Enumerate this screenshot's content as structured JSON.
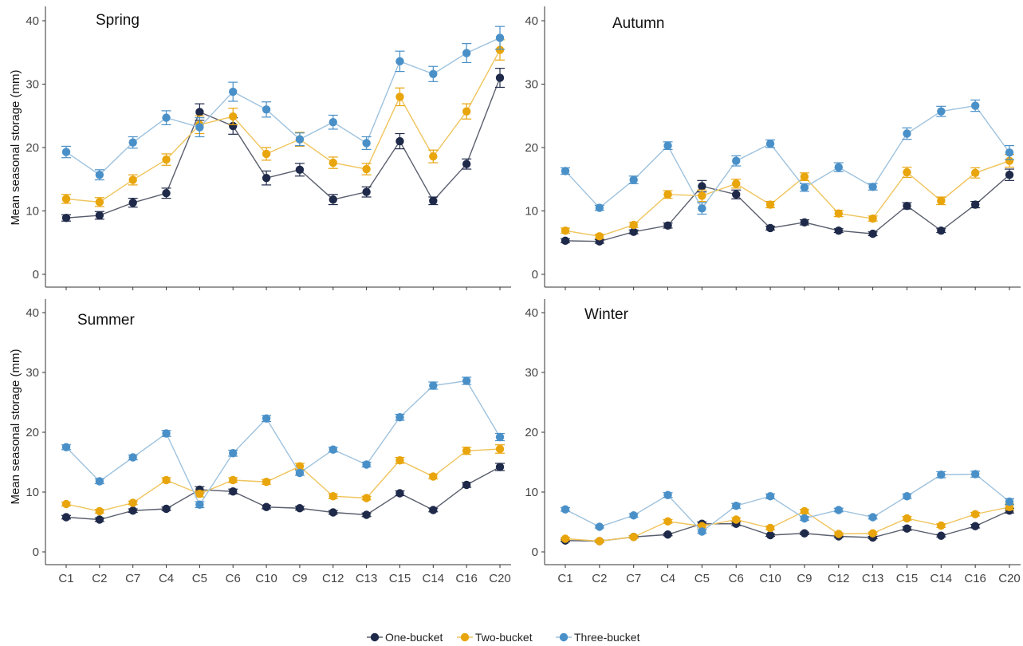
{
  "chart_data": {
    "type": "line",
    "ylabel": "Mean seasonal storage (mm)",
    "ylim": [
      0,
      40
    ],
    "yticks": [
      "0",
      "10",
      "20",
      "30",
      "40"
    ],
    "categories": [
      "C1",
      "C2",
      "C7",
      "C4",
      "C5",
      "C6",
      "C10",
      "C9",
      "C12",
      "C13",
      "C15",
      "C14",
      "C16",
      "C20"
    ],
    "legend": {
      "position": "bottom",
      "entries": [
        "One-bucket",
        "Two-bucket",
        "Three-bucket"
      ],
      "colors": [
        "#1f2a4a",
        "#e8a50c",
        "#4a90c8"
      ]
    },
    "panels": [
      {
        "title": "Spring",
        "series": [
          {
            "name": "One-bucket",
            "values": [
              8.9,
              9.3,
              11.3,
              12.8,
              25.6,
              23.4,
              15.2,
              16.5,
              11.8,
              13.0,
              21.0,
              11.6,
              17.4,
              31.0
            ],
            "errors": [
              0.5,
              0.6,
              0.7,
              0.8,
              1.3,
              1.3,
              1.1,
              1.0,
              0.8,
              0.8,
              1.2,
              0.6,
              0.8,
              1.5
            ]
          },
          {
            "name": "Two-bucket",
            "values": [
              11.9,
              11.4,
              14.9,
              18.1,
              23.6,
              24.9,
              19.0,
              21.3,
              17.6,
              16.6,
              28.0,
              18.6,
              25.7,
              35.4
            ],
            "errors": [
              0.7,
              0.7,
              0.8,
              0.9,
              1.4,
              1.3,
              1.0,
              1.1,
              0.9,
              0.9,
              1.4,
              1.0,
              1.2,
              1.6
            ]
          },
          {
            "name": "Three-bucket",
            "values": [
              19.3,
              15.7,
              20.8,
              24.7,
              23.2,
              28.8,
              26.0,
              21.3,
              24.0,
              20.7,
              33.6,
              31.6,
              34.9,
              37.3
            ],
            "errors": [
              0.9,
              0.8,
              0.9,
              1.1,
              1.5,
              1.5,
              1.2,
              1.0,
              1.1,
              1.0,
              1.6,
              1.2,
              1.5,
              1.8
            ]
          }
        ]
      },
      {
        "title": "Autumn",
        "series": [
          {
            "name": "One-bucket",
            "values": [
              5.3,
              5.2,
              6.7,
              7.7,
              13.9,
              12.6,
              7.3,
              8.2,
              6.9,
              6.4,
              10.8,
              6.9,
              11.0,
              15.7
            ],
            "errors": [
              0.3,
              0.3,
              0.3,
              0.4,
              0.9,
              0.7,
              0.3,
              0.4,
              0.3,
              0.3,
              0.5,
              0.3,
              0.5,
              0.9
            ]
          },
          {
            "name": "Two-bucket",
            "values": [
              6.9,
              6.0,
              7.8,
              12.6,
              12.4,
              14.3,
              11.0,
              15.4,
              9.6,
              8.8,
              16.1,
              11.6,
              16.0,
              17.9
            ],
            "errors": [
              0.4,
              0.3,
              0.4,
              0.6,
              0.9,
              0.7,
              0.5,
              0.6,
              0.5,
              0.4,
              0.8,
              0.6,
              0.8,
              1.0
            ]
          },
          {
            "name": "Three-bucket",
            "values": [
              16.3,
              10.5,
              14.9,
              20.3,
              10.4,
              17.9,
              20.6,
              13.7,
              16.9,
              13.8,
              22.2,
              25.7,
              26.6,
              19.2
            ],
            "errors": [
              0.5,
              0.4,
              0.6,
              0.6,
              0.9,
              0.8,
              0.6,
              0.6,
              0.7,
              0.5,
              0.9,
              0.8,
              0.9,
              1.1
            ]
          }
        ]
      },
      {
        "title": "Summer",
        "series": [
          {
            "name": "One-bucket",
            "values": [
              5.8,
              5.4,
              6.9,
              7.2,
              10.4,
              10.1,
              7.5,
              7.3,
              6.6,
              6.2,
              9.8,
              7.0,
              11.2,
              14.2
            ],
            "errors": [
              0.3,
              0.3,
              0.3,
              0.3,
              0.5,
              0.4,
              0.3,
              0.3,
              0.3,
              0.3,
              0.4,
              0.3,
              0.4,
              0.6
            ]
          },
          {
            "name": "Two-bucket",
            "values": [
              8.0,
              6.8,
              8.2,
              12.0,
              9.7,
              12.0,
              11.7,
              14.3,
              9.3,
              9.0,
              15.3,
              12.6,
              16.9,
              17.2
            ],
            "errors": [
              0.3,
              0.3,
              0.3,
              0.4,
              0.5,
              0.4,
              0.4,
              0.5,
              0.4,
              0.3,
              0.5,
              0.4,
              0.6,
              0.7
            ]
          },
          {
            "name": "Three-bucket",
            "values": [
              17.5,
              11.8,
              15.8,
              19.8,
              7.9,
              16.5,
              22.3,
              13.2,
              17.1,
              14.6,
              22.5,
              27.8,
              28.6,
              19.2
            ],
            "errors": [
              0.4,
              0.4,
              0.4,
              0.5,
              0.5,
              0.5,
              0.5,
              0.4,
              0.4,
              0.4,
              0.5,
              0.6,
              0.6,
              0.6
            ]
          }
        ]
      },
      {
        "title": "Winter",
        "series": [
          {
            "name": "One-bucket",
            "values": [
              1.9,
              1.8,
              2.5,
              2.9,
              4.7,
              4.7,
              2.8,
              3.1,
              2.6,
              2.4,
              3.9,
              2.7,
              4.3,
              6.9
            ],
            "errors": [
              0.2,
              0.2,
              0.2,
              0.2,
              0.3,
              0.3,
              0.2,
              0.2,
              0.2,
              0.2,
              0.3,
              0.2,
              0.3,
              0.4
            ]
          },
          {
            "name": "Two-bucket",
            "values": [
              2.2,
              1.8,
              2.5,
              5.1,
              4.3,
              5.4,
              4.0,
              6.8,
              3.0,
              3.1,
              5.6,
              4.4,
              6.3,
              7.5
            ],
            "errors": [
              0.2,
              0.2,
              0.2,
              0.3,
              0.3,
              0.3,
              0.3,
              0.3,
              0.2,
              0.2,
              0.3,
              0.3,
              0.3,
              0.5
            ]
          },
          {
            "name": "Three-bucket",
            "values": [
              7.1,
              4.2,
              6.1,
              9.5,
              3.4,
              7.7,
              9.3,
              5.6,
              7.0,
              5.8,
              9.3,
              12.9,
              13.0,
              8.4
            ],
            "errors": [
              0.3,
              0.2,
              0.3,
              0.4,
              0.3,
              0.4,
              0.4,
              0.3,
              0.3,
              0.3,
              0.4,
              0.5,
              0.5,
              0.5
            ]
          }
        ]
      }
    ]
  }
}
